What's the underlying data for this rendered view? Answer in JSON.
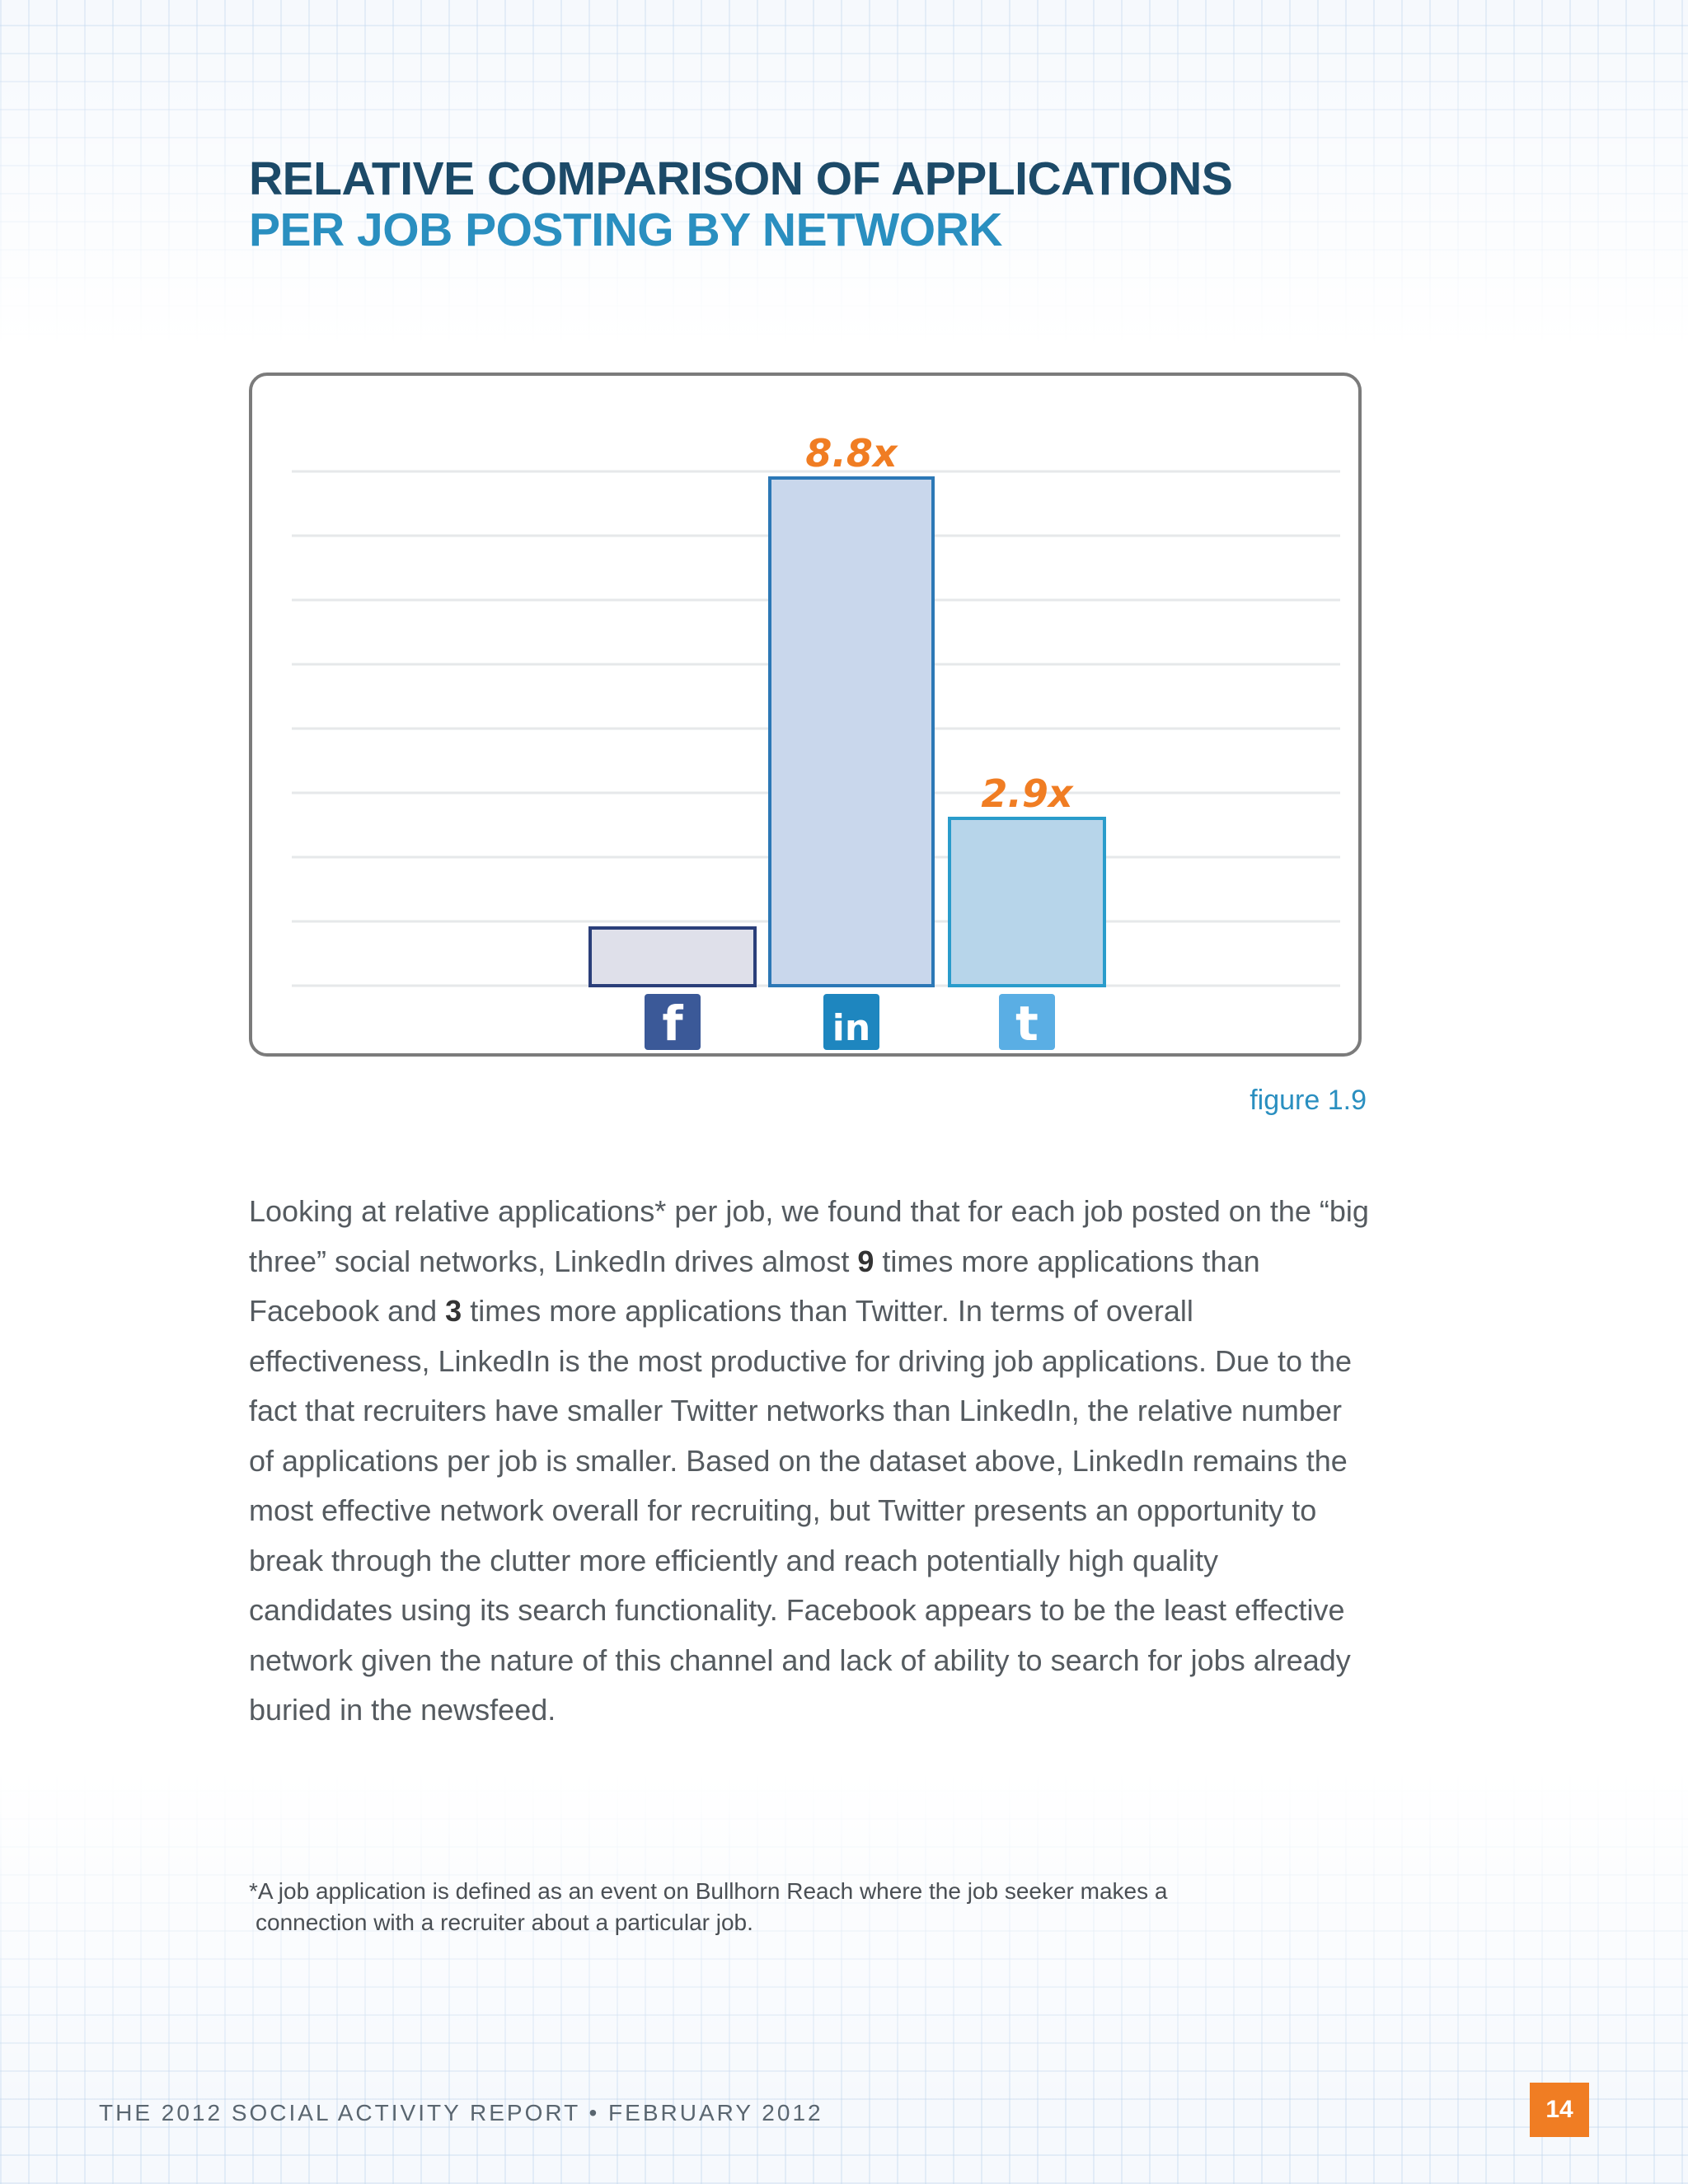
{
  "title": {
    "line1": "RELATIVE COMPARISON OF APPLICATIONS",
    "line2": "PER JOB POSTING BY NETWORK"
  },
  "chart_data": {
    "type": "bar",
    "categories": [
      "Facebook",
      "LinkedIn",
      "Twitter"
    ],
    "values": [
      1.0,
      8.8,
      2.9
    ],
    "data_labels": [
      "",
      "8.8x",
      "2.9x"
    ],
    "category_icons": [
      "facebook-icon",
      "linkedin-icon",
      "twitter-icon"
    ],
    "ylim": [
      0,
      10
    ],
    "grid": true,
    "legend": "none",
    "colors": {
      "fill": [
        "#dfe0ea",
        "#c9d7ec",
        "#b7d5ea"
      ],
      "stroke": [
        "#2b3f7a",
        "#2c78b6",
        "#2a9ccb"
      ],
      "label": "#f07d23",
      "icon": [
        "#3b5998",
        "#1e86bf",
        "#5aaee4"
      ]
    }
  },
  "caption": "figure 1.9",
  "body": {
    "t1": "Looking at relative applications* per job, we found that for each job posted on the “big three” social networks, LinkedIn drives almost ",
    "b1": "9",
    "t2": " times more applications than Facebook and ",
    "b2": "3",
    "t3": " times more applications than Twitter. In terms of overall effectiveness, LinkedIn is the most productive for driving job applications. Due to the fact that recruiters have smaller Twitter networks than LinkedIn, the relative number of applications per job is smaller. Based on the dataset above, LinkedIn remains the most effective network overall for recruiting, but Twitter presents an opportunity to break through the clutter more efficiently and reach potentially high quality candidates using its search functionality. Facebook appears to be the least effective network given the nature of this channel and lack of ability to search for jobs already buried in the newsfeed."
  },
  "footnote": {
    "line1": "*A job application is defined as an event on Bullhorn Reach where the job seeker makes a",
    "line2": "connection with a recruiter about a particular job."
  },
  "footer": {
    "text": "THE 2012 SOCIAL ACTIVITY REPORT • FEBRUARY 2012",
    "page": "14"
  }
}
